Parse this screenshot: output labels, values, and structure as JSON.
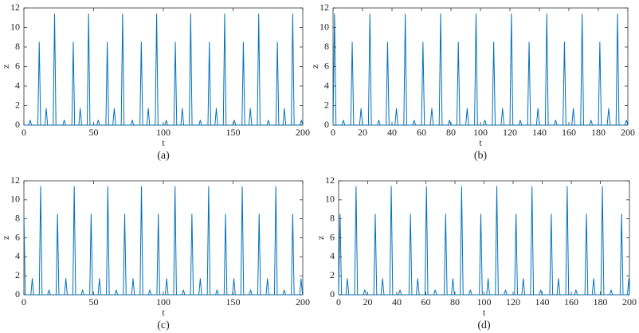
{
  "chart_data": [
    {
      "type": "line",
      "xlabel": "t",
      "ylabel": "z",
      "caption": "(a)",
      "color": "#0072bd",
      "xlim": [
        0,
        200
      ],
      "xticks": [
        0,
        50,
        100,
        150,
        200
      ],
      "ylim": [
        0,
        12
      ],
      "yticks": [
        0,
        2,
        4,
        6,
        8,
        10,
        12
      ],
      "x": [
        0,
        3.5,
        4.5,
        5.5,
        10,
        11,
        12,
        15,
        16,
        17,
        21,
        22,
        23,
        27.9,
        28.9,
        29.9,
        34.4,
        35.4,
        36.4,
        39.4,
        40.4,
        41.4,
        45.4,
        46.4,
        47.4,
        52.3,
        53.3,
        54.3,
        58.8,
        59.8,
        60.8,
        63.8,
        64.8,
        65.8,
        69.8,
        70.8,
        71.8,
        76.7,
        77.7,
        78.7,
        83.2,
        84.2,
        85.2,
        88.2,
        89.2,
        90.2,
        94.2,
        95.2,
        96.2,
        101.1,
        102.1,
        103.1,
        107.6,
        108.6,
        109.6,
        112.6,
        113.6,
        114.6,
        118.6,
        119.6,
        120.6,
        125.5,
        126.5,
        127.5,
        132,
        133,
        134,
        137,
        138,
        139,
        143,
        144,
        145,
        149.9,
        150.9,
        151.9,
        156.4,
        157.4,
        158.4,
        161.4,
        162.4,
        163.4,
        167.4,
        168.4,
        169.4,
        174.3,
        175.3,
        176.3,
        180.8,
        181.8,
        182.8,
        185.8,
        186.8,
        187.8,
        191.8,
        192.8,
        193.8,
        198,
        199,
        200
      ],
      "values": [
        0,
        0,
        0.5,
        0,
        0,
        8.5,
        0,
        0,
        1.7,
        0,
        0,
        11.4,
        0,
        0,
        0.5,
        0,
        0,
        8.5,
        0,
        0,
        1.7,
        0,
        0,
        11.4,
        0,
        0,
        0.5,
        0,
        0,
        8.5,
        0,
        0,
        1.7,
        0,
        0,
        11.4,
        0,
        0,
        0.5,
        0,
        0,
        8.5,
        0,
        0,
        1.7,
        0,
        0,
        11.4,
        0,
        0,
        0.5,
        0,
        0,
        8.5,
        0,
        0,
        1.7,
        0,
        0,
        11.4,
        0,
        0,
        0.5,
        0,
        0,
        8.5,
        0,
        0,
        1.7,
        0,
        0,
        11.4,
        0,
        0,
        0.5,
        0,
        0,
        8.5,
        0,
        0,
        1.7,
        0,
        0,
        11.4,
        0,
        0,
        0.5,
        0,
        0,
        8.5,
        0,
        0,
        1.7,
        0,
        0,
        11.4,
        0,
        0,
        0.5,
        0
      ]
    },
    {
      "type": "line",
      "xlabel": "t",
      "ylabel": "z",
      "caption": "(b)",
      "color": "#0072bd",
      "xlim": [
        0,
        200
      ],
      "xticks": [
        0,
        20,
        40,
        60,
        80,
        100,
        120,
        140,
        160,
        180,
        200
      ],
      "ylim": [
        0,
        12
      ],
      "yticks": [
        0,
        2,
        4,
        6,
        8,
        10,
        12
      ],
      "x": [
        0,
        1,
        2,
        6,
        7,
        8,
        12,
        13,
        14,
        18,
        19,
        20,
        24,
        25,
        26,
        30,
        31,
        32,
        36,
        37,
        38,
        42,
        43,
        44,
        48,
        49,
        50,
        54,
        55,
        56,
        60,
        61,
        62,
        66,
        67,
        68,
        72,
        73,
        74,
        78,
        79,
        80,
        84,
        85,
        86,
        90,
        91,
        92,
        96,
        97,
        98,
        102,
        103,
        104,
        108,
        109,
        110,
        114,
        115,
        116,
        120,
        121,
        122,
        126,
        127,
        128,
        132,
        133,
        134,
        138,
        139,
        140,
        144,
        145,
        146,
        150,
        151,
        152,
        156,
        157,
        158,
        162,
        163,
        164,
        168,
        169,
        170,
        174,
        175,
        176,
        180,
        181,
        182,
        186,
        187,
        188,
        192,
        193,
        194,
        198,
        199,
        200
      ],
      "values": [
        0,
        11.4,
        0,
        0,
        0.5,
        0,
        0,
        8.5,
        0,
        0,
        1.7,
        0,
        0,
        11.4,
        0,
        0,
        0.5,
        0,
        0,
        8.5,
        0,
        0,
        1.7,
        0,
        0,
        11.4,
        0,
        0,
        0.5,
        0,
        0,
        8.5,
        0,
        0,
        1.7,
        0,
        0,
        11.4,
        0,
        0,
        0.5,
        0,
        0,
        8.5,
        0,
        0,
        1.7,
        0,
        0,
        11.4,
        0,
        0,
        0.5,
        0,
        0,
        8.5,
        0,
        0,
        1.7,
        0,
        0,
        11.4,
        0,
        0,
        0.5,
        0,
        0,
        8.5,
        0,
        0,
        1.7,
        0,
        0,
        11.4,
        0,
        0,
        0.5,
        0,
        0,
        8.5,
        0,
        0,
        1.7,
        0,
        0,
        11.4,
        0,
        0,
        0.5,
        0,
        0,
        8.5,
        0,
        0,
        1.7,
        0,
        0,
        11.4,
        0,
        0,
        0.5,
        0
      ]
    },
    {
      "type": "line",
      "xlabel": "t",
      "ylabel": "z",
      "caption": "(c)",
      "color": "#0072bd",
      "xlim": [
        0,
        200
      ],
      "xticks": [
        0,
        50,
        100,
        150,
        200
      ],
      "ylim": [
        0,
        12
      ],
      "yticks": [
        0,
        2,
        4,
        6,
        8,
        10,
        12
      ],
      "x": [
        0,
        1,
        5,
        6,
        7,
        11,
        12,
        13,
        17,
        18,
        19,
        23.1,
        24.1,
        25.1,
        29.1,
        30.1,
        31.1,
        35.1,
        36.1,
        37.1,
        41.1,
        42.1,
        43.1,
        47.2,
        48.2,
        49.2,
        53.2,
        54.2,
        55.2,
        59.2,
        60.2,
        61.2,
        65.2,
        66.2,
        67.2,
        71.3,
        72.3,
        73.3,
        77.3,
        78.3,
        79.3,
        83.3,
        84.3,
        85.3,
        89.3,
        90.3,
        91.3,
        95.4,
        96.4,
        97.4,
        101.4,
        102.4,
        103.4,
        107.4,
        108.4,
        109.4,
        113.4,
        114.4,
        115.4,
        119.5,
        120.5,
        121.5,
        125.5,
        126.5,
        127.5,
        131.5,
        132.5,
        133.5,
        137.5,
        138.5,
        139.5,
        143.6,
        144.6,
        145.6,
        149.6,
        150.6,
        151.6,
        155.6,
        156.6,
        157.6,
        161.6,
        162.6,
        163.6,
        167.7,
        168.7,
        169.7,
        173.7,
        174.7,
        175.7,
        179.7,
        180.7,
        181.7,
        185.7,
        186.7,
        187.7,
        191.8,
        192.8,
        193.8,
        197.8,
        198.8,
        199.8
      ],
      "values": [
        8.5,
        0,
        0,
        1.7,
        0,
        0,
        11.4,
        0,
        0,
        0.5,
        0,
        0,
        8.5,
        0,
        0,
        1.7,
        0,
        0,
        11.4,
        0,
        0,
        0.5,
        0,
        0,
        8.5,
        0,
        0,
        1.7,
        0,
        0,
        11.4,
        0,
        0,
        0.5,
        0,
        0,
        8.5,
        0,
        0,
        1.7,
        0,
        0,
        11.4,
        0,
        0,
        0.5,
        0,
        0,
        8.5,
        0,
        0,
        1.7,
        0,
        0,
        11.4,
        0,
        0,
        0.5,
        0,
        0,
        8.5,
        0,
        0,
        1.7,
        0,
        0,
        11.4,
        0,
        0,
        0.5,
        0,
        0,
        8.5,
        0,
        0,
        1.7,
        0,
        0,
        11.4,
        0,
        0,
        0.5,
        0,
        0,
        8.5,
        0,
        0,
        1.7,
        0,
        0,
        11.4,
        0,
        0,
        0.5,
        0,
        0,
        8.5,
        0,
        0,
        1.7,
        0
      ]
    },
    {
      "type": "line",
      "xlabel": "t",
      "ylabel": "z",
      "caption": "(d)",
      "color": "#0072bd",
      "xlim": [
        0,
        200
      ],
      "xticks": [
        0,
        20,
        40,
        60,
        80,
        100,
        120,
        140,
        160,
        180,
        200
      ],
      "ylim": [
        0,
        12
      ],
      "yticks": [
        0,
        2,
        4,
        6,
        8,
        10,
        12
      ],
      "x": [
        0,
        1,
        2,
        5,
        6,
        7,
        11,
        12,
        13,
        17,
        18,
        19,
        24.2,
        25.2,
        26.2,
        29.2,
        30.2,
        31.2,
        35.2,
        36.2,
        37.2,
        41.2,
        42.2,
        43.2,
        48.4,
        49.4,
        50.4,
        53.4,
        54.4,
        55.4,
        59.4,
        60.4,
        61.4,
        65.4,
        66.4,
        67.4,
        72.6,
        73.6,
        74.6,
        77.6,
        78.6,
        79.6,
        83.6,
        84.6,
        85.6,
        89.6,
        90.6,
        91.6,
        96.8,
        97.8,
        98.8,
        101.8,
        102.8,
        103.8,
        107.8,
        108.8,
        109.8,
        113.8,
        114.8,
        115.8,
        121,
        122,
        123,
        126,
        127,
        128,
        132,
        133,
        134,
        138,
        139,
        140,
        145.2,
        146.2,
        147.2,
        150.2,
        151.2,
        152.2,
        156.2,
        157.2,
        158.2,
        162.2,
        163.2,
        164.2,
        169.4,
        170.4,
        171.4,
        174.4,
        175.4,
        176.4,
        180.4,
        181.4,
        182.4,
        186.4,
        187.4,
        188.4,
        193.6,
        194.6,
        195.6,
        198.6,
        199.6,
        200
      ],
      "values": [
        0,
        8.5,
        0,
        0,
        1.7,
        0,
        0,
        11.4,
        0,
        0,
        0.5,
        0,
        0,
        8.5,
        0,
        0,
        1.7,
        0,
        0,
        11.4,
        0,
        0,
        0.5,
        0,
        0,
        8.5,
        0,
        0,
        1.7,
        0,
        0,
        11.4,
        0,
        0,
        0.5,
        0,
        0,
        8.5,
        0,
        0,
        1.7,
        0,
        0,
        11.4,
        0,
        0,
        0.5,
        0,
        0,
        8.5,
        0,
        0,
        1.7,
        0,
        0,
        11.4,
        0,
        0,
        0.5,
        0,
        0,
        8.5,
        0,
        0,
        1.7,
        0,
        0,
        11.4,
        0,
        0,
        0.5,
        0,
        0,
        8.5,
        0,
        0,
        1.7,
        0,
        0,
        11.4,
        0,
        0,
        0.5,
        0,
        0,
        8.5,
        0,
        0,
        1.7,
        0,
        0,
        11.4,
        0,
        0,
        0.5,
        0,
        0,
        8.5,
        0,
        0,
        1.7,
        0
      ]
    }
  ]
}
